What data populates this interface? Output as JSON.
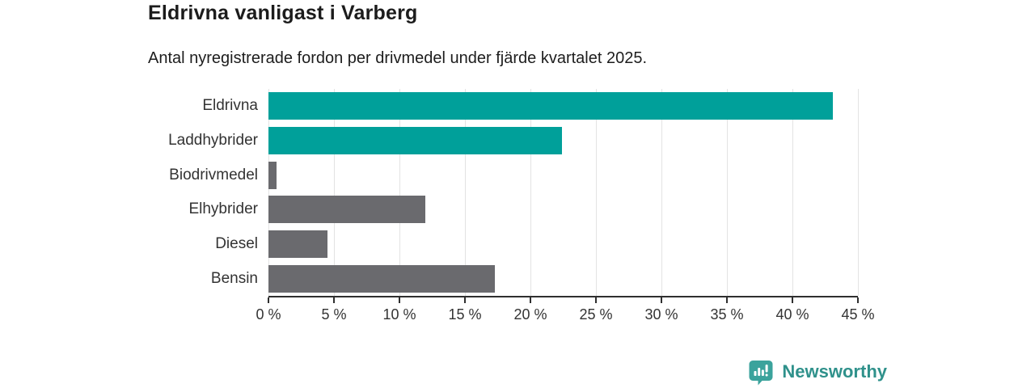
{
  "header": {
    "title": "Eldrivna vanligast i Varberg",
    "subtitle": "Antal nyregistrerade fordon per drivmedel under fjärde kvartalet 2025."
  },
  "chart_data": {
    "type": "bar",
    "orientation": "horizontal",
    "title": "Eldrivna vanligast i Varberg",
    "subtitle": "Antal nyregistrerade fordon per drivmedel under fjärde kvartalet 2025.",
    "categories": [
      "Eldrivna",
      "Laddhybrider",
      "Biodrivmedel",
      "Elhybrider",
      "Diesel",
      "Bensin"
    ],
    "values": [
      43.1,
      22.4,
      0.6,
      12.0,
      4.5,
      17.3
    ],
    "unit": "%",
    "xlabel": "",
    "ylabel": "",
    "xlim": [
      0,
      45
    ],
    "x_ticks": [
      0,
      5,
      10,
      15,
      20,
      25,
      30,
      35,
      40,
      45
    ],
    "x_tick_labels": [
      "0 %",
      "5 %",
      "10 %",
      "15 %",
      "20 %",
      "25 %",
      "30 %",
      "35 %",
      "40 %",
      "45 %"
    ],
    "bar_colors": [
      "#00a09a",
      "#00a09a",
      "#6a6a6e",
      "#6a6a6e",
      "#6a6a6e",
      "#6a6a6e"
    ],
    "grid": true,
    "legend": "none"
  },
  "colors": {
    "accent_teal": "#00a09a",
    "bar_gray": "#6a6a6e",
    "gridline": "#e3e3e3",
    "axis": "#2f2f2f",
    "brand_teal": "#2f918b",
    "brand_icon_teal": "#3ba39c"
  },
  "footer": {
    "brand": "Newsworthy"
  }
}
